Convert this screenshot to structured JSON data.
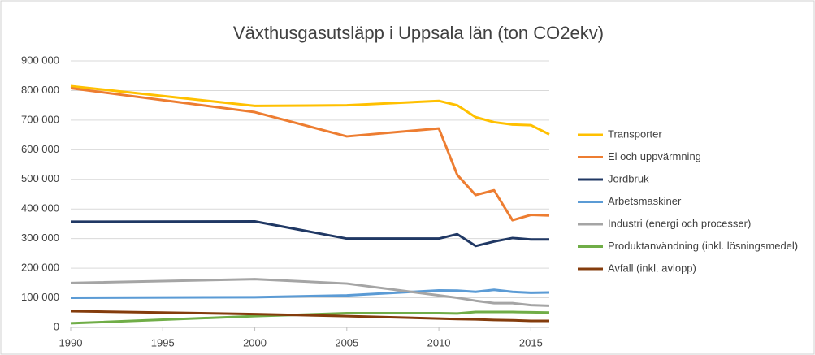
{
  "chart_data": {
    "type": "line",
    "title": "Växthusgasutsläpp i Uppsala län (ton CO2ekv)",
    "x": [
      1990,
      2000,
      2005,
      2010,
      2011,
      2012,
      2013,
      2014,
      2015,
      2016
    ],
    "xlim": [
      1990,
      2016
    ],
    "xticks": [
      1990,
      1995,
      2000,
      2005,
      2010,
      2015
    ],
    "ylim": [
      0,
      900000
    ],
    "yticks": [
      0,
      {
        "value": 100000,
        "label": "100 000"
      },
      {
        "value": 200000,
        "label": "200 000"
      },
      {
        "value": 300000,
        "label": "300 000"
      },
      {
        "value": 400000,
        "label": "400 000"
      },
      {
        "value": 500000,
        "label": "500 000"
      },
      {
        "value": 600000,
        "label": "600 000"
      },
      {
        "value": 700000,
        "label": "700 000"
      },
      {
        "value": 800000,
        "label": "800 000"
      },
      {
        "value": 900000,
        "label": "900 000"
      }
    ],
    "grid": true,
    "legend": "right",
    "series": [
      {
        "name": "Transporter",
        "color": "#FFC000",
        "values": [
          815000,
          748000,
          750000,
          765000,
          750000,
          710000,
          693000,
          685000,
          683000,
          652000
        ]
      },
      {
        "name": "El och uppvärmning",
        "color": "#ED7D31",
        "values": [
          808000,
          727000,
          645000,
          672000,
          515000,
          447000,
          463000,
          362000,
          380000,
          378000
        ]
      },
      {
        "name": "Jordbruk",
        "color": "#203864",
        "values": [
          357000,
          358000,
          300000,
          300000,
          315000,
          275000,
          290000,
          302000,
          297000,
          297000
        ]
      },
      {
        "name": "Arbetsmaskiner",
        "color": "#5B9BD5",
        "values": [
          100000,
          102000,
          108000,
          125000,
          124000,
          120000,
          127000,
          120000,
          117000,
          118000
        ]
      },
      {
        "name": "Industri (energi och processer)",
        "color": "#A5A5A5",
        "values": [
          150000,
          163000,
          148000,
          108000,
          100000,
          90000,
          82000,
          82000,
          75000,
          73000
        ]
      },
      {
        "name": "Produktanvändning (inkl. lösningsmedel)",
        "color": "#70AD47",
        "values": [
          14000,
          38000,
          48000,
          48000,
          47000,
          52000,
          52000,
          52000,
          51000,
          50000
        ]
      },
      {
        "name": "Avfall (inkl. avlopp)",
        "color": "#843C0C",
        "values": [
          55000,
          45000,
          38000,
          30000,
          28000,
          27000,
          25000,
          24000,
          22000,
          22000
        ]
      }
    ]
  }
}
